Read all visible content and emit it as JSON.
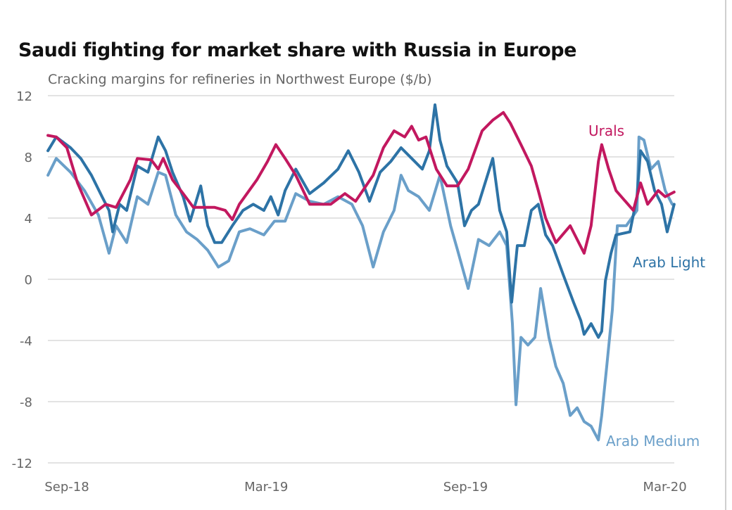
{
  "chart_data": {
    "type": "line",
    "title": "Saudi fighting for market share with Russia in Europe",
    "subtitle": "Cracking margins for refineries in Northwest Europe ($/b)",
    "xlabel": "",
    "ylabel": "$/b",
    "x_unit": "months since Sep-18",
    "xticks": [
      {
        "value": 0,
        "label": "Sep-18"
      },
      {
        "value": 6,
        "label": "Mar-19"
      },
      {
        "value": 12,
        "label": "Sep-19"
      },
      {
        "value": 18,
        "label": "Mar-20"
      }
    ],
    "xlim": [
      -0.57,
      18.3
    ],
    "ylim": [
      -12,
      12
    ],
    "yticks": [
      12,
      8,
      4,
      0,
      -4,
      -8,
      -12
    ],
    "grid": true,
    "legend": "direct labels at line ends",
    "series": [
      {
        "name": "Arab Medium",
        "color": "#6a9fc9",
        "points": [
          [
            -0.57,
            6.8
          ],
          [
            -0.32,
            7.9
          ],
          [
            0.11,
            7.0
          ],
          [
            0.53,
            5.8
          ],
          [
            0.95,
            4.2
          ],
          [
            1.27,
            1.7
          ],
          [
            1.48,
            3.5
          ],
          [
            1.8,
            2.4
          ],
          [
            2.12,
            5.4
          ],
          [
            2.44,
            4.9
          ],
          [
            2.75,
            7.0
          ],
          [
            2.97,
            6.8
          ],
          [
            3.28,
            4.2
          ],
          [
            3.6,
            3.1
          ],
          [
            3.92,
            2.6
          ],
          [
            4.24,
            1.9
          ],
          [
            4.56,
            0.8
          ],
          [
            4.87,
            1.2
          ],
          [
            5.19,
            3.1
          ],
          [
            5.51,
            3.3
          ],
          [
            5.93,
            2.9
          ],
          [
            6.25,
            3.8
          ],
          [
            6.57,
            3.8
          ],
          [
            6.89,
            5.6
          ],
          [
            7.31,
            5.1
          ],
          [
            7.73,
            4.9
          ],
          [
            8.16,
            5.4
          ],
          [
            8.58,
            4.9
          ],
          [
            8.9,
            3.5
          ],
          [
            9.22,
            0.8
          ],
          [
            9.53,
            3.1
          ],
          [
            9.85,
            4.5
          ],
          [
            10.06,
            6.8
          ],
          [
            10.28,
            5.8
          ],
          [
            10.59,
            5.4
          ],
          [
            10.91,
            4.5
          ],
          [
            11.23,
            6.8
          ],
          [
            11.55,
            3.5
          ],
          [
            11.76,
            1.9
          ],
          [
            12.08,
            -0.6
          ],
          [
            12.39,
            2.6
          ],
          [
            12.71,
            2.2
          ],
          [
            13.03,
            3.1
          ],
          [
            13.24,
            2.2
          ],
          [
            13.41,
            -2.9
          ],
          [
            13.52,
            -8.2
          ],
          [
            13.67,
            -3.8
          ],
          [
            13.88,
            -4.3
          ],
          [
            14.09,
            -3.8
          ],
          [
            14.26,
            -0.6
          ],
          [
            14.51,
            -3.8
          ],
          [
            14.72,
            -5.7
          ],
          [
            14.94,
            -6.8
          ],
          [
            15.15,
            -8.9
          ],
          [
            15.36,
            -8.4
          ],
          [
            15.57,
            -9.3
          ],
          [
            15.78,
            -9.6
          ],
          [
            16.0,
            -10.5
          ],
          [
            16.1,
            -8.9
          ],
          [
            16.25,
            -5.7
          ],
          [
            16.42,
            -2.0
          ],
          [
            16.57,
            3.5
          ],
          [
            16.84,
            3.5
          ],
          [
            17.16,
            4.5
          ],
          [
            17.22,
            9.3
          ],
          [
            17.37,
            9.1
          ],
          [
            17.58,
            7.2
          ],
          [
            17.8,
            7.7
          ],
          [
            18.01,
            5.8
          ],
          [
            18.22,
            4.9
          ]
        ]
      },
      {
        "name": "Arab Light",
        "color": "#2d73a6",
        "points": [
          [
            -0.57,
            8.4
          ],
          [
            -0.32,
            9.3
          ],
          [
            0.11,
            8.6
          ],
          [
            0.42,
            7.9
          ],
          [
            0.74,
            6.8
          ],
          [
            1.06,
            5.4
          ],
          [
            1.27,
            4.5
          ],
          [
            1.38,
            3.1
          ],
          [
            1.59,
            4.9
          ],
          [
            1.8,
            4.5
          ],
          [
            2.12,
            7.4
          ],
          [
            2.44,
            7.0
          ],
          [
            2.75,
            9.3
          ],
          [
            2.97,
            8.4
          ],
          [
            3.18,
            7.0
          ],
          [
            3.5,
            5.4
          ],
          [
            3.71,
            3.8
          ],
          [
            4.03,
            6.1
          ],
          [
            4.24,
            3.5
          ],
          [
            4.45,
            2.4
          ],
          [
            4.66,
            2.4
          ],
          [
            4.98,
            3.5
          ],
          [
            5.3,
            4.5
          ],
          [
            5.61,
            4.9
          ],
          [
            5.93,
            4.5
          ],
          [
            6.14,
            5.4
          ],
          [
            6.36,
            4.2
          ],
          [
            6.57,
            5.8
          ],
          [
            6.89,
            7.2
          ],
          [
            7.31,
            5.6
          ],
          [
            7.73,
            6.3
          ],
          [
            8.16,
            7.2
          ],
          [
            8.47,
            8.4
          ],
          [
            8.79,
            7.0
          ],
          [
            9.11,
            5.1
          ],
          [
            9.43,
            7.0
          ],
          [
            9.75,
            7.7
          ],
          [
            10.06,
            8.6
          ],
          [
            10.38,
            7.9
          ],
          [
            10.7,
            7.2
          ],
          [
            10.91,
            8.4
          ],
          [
            11.08,
            11.4
          ],
          [
            11.23,
            9.1
          ],
          [
            11.44,
            7.4
          ],
          [
            11.76,
            6.3
          ],
          [
            11.97,
            3.5
          ],
          [
            12.18,
            4.5
          ],
          [
            12.39,
            4.9
          ],
          [
            12.82,
            7.9
          ],
          [
            13.03,
            4.5
          ],
          [
            13.24,
            3.1
          ],
          [
            13.39,
            -1.5
          ],
          [
            13.56,
            2.2
          ],
          [
            13.77,
            2.2
          ],
          [
            13.98,
            4.5
          ],
          [
            14.19,
            4.9
          ],
          [
            14.41,
            2.9
          ],
          [
            14.62,
            2.2
          ],
          [
            14.94,
            0.3
          ],
          [
            15.25,
            -1.5
          ],
          [
            15.47,
            -2.7
          ],
          [
            15.57,
            -3.6
          ],
          [
            15.78,
            -2.9
          ],
          [
            16.0,
            -3.8
          ],
          [
            16.1,
            -3.4
          ],
          [
            16.21,
            -0.1
          ],
          [
            16.38,
            1.7
          ],
          [
            16.53,
            2.9
          ],
          [
            16.95,
            3.1
          ],
          [
            17.16,
            5.4
          ],
          [
            17.27,
            8.4
          ],
          [
            17.48,
            7.7
          ],
          [
            17.69,
            5.8
          ],
          [
            17.9,
            4.9
          ],
          [
            18.07,
            3.1
          ],
          [
            18.28,
            4.9
          ]
        ]
      },
      {
        "name": "Urals",
        "color": "#c2185f",
        "points": [
          [
            -0.57,
            9.4
          ],
          [
            -0.32,
            9.3
          ],
          [
            0,
            8.6
          ],
          [
            0.32,
            6.3
          ],
          [
            0.74,
            4.2
          ],
          [
            1.17,
            4.9
          ],
          [
            1.48,
            4.7
          ],
          [
            1.91,
            6.5
          ],
          [
            2.12,
            7.9
          ],
          [
            2.54,
            7.8
          ],
          [
            2.75,
            7.2
          ],
          [
            2.9,
            7.9
          ],
          [
            3.18,
            6.5
          ],
          [
            3.5,
            5.6
          ],
          [
            3.81,
            4.7
          ],
          [
            4.45,
            4.7
          ],
          [
            4.77,
            4.5
          ],
          [
            4.98,
            3.9
          ],
          [
            5.19,
            4.9
          ],
          [
            5.72,
            6.5
          ],
          [
            6.04,
            7.7
          ],
          [
            6.29,
            8.8
          ],
          [
            6.57,
            7.9
          ],
          [
            6.89,
            6.8
          ],
          [
            7.31,
            4.9
          ],
          [
            7.94,
            4.9
          ],
          [
            8.37,
            5.6
          ],
          [
            8.69,
            5.1
          ],
          [
            9.22,
            6.8
          ],
          [
            9.53,
            8.6
          ],
          [
            9.85,
            9.7
          ],
          [
            10.17,
            9.3
          ],
          [
            10.38,
            10.0
          ],
          [
            10.59,
            9.1
          ],
          [
            10.81,
            9.3
          ],
          [
            11.12,
            7.2
          ],
          [
            11.44,
            6.1
          ],
          [
            11.76,
            6.1
          ],
          [
            12.08,
            7.2
          ],
          [
            12.5,
            9.7
          ],
          [
            12.82,
            10.4
          ],
          [
            13.14,
            10.9
          ],
          [
            13.35,
            10.2
          ],
          [
            13.67,
            8.8
          ],
          [
            13.98,
            7.4
          ],
          [
            14.19,
            5.8
          ],
          [
            14.41,
            4.0
          ],
          [
            14.72,
            2.4
          ],
          [
            15.15,
            3.5
          ],
          [
            15.57,
            1.7
          ],
          [
            15.78,
            3.5
          ],
          [
            16.0,
            7.7
          ],
          [
            16.1,
            8.8
          ],
          [
            16.31,
            7.2
          ],
          [
            16.53,
            5.8
          ],
          [
            17.05,
            4.5
          ],
          [
            17.27,
            6.3
          ],
          [
            17.48,
            4.9
          ],
          [
            17.8,
            5.8
          ],
          [
            18.01,
            5.4
          ],
          [
            18.28,
            5.7
          ]
        ]
      }
    ]
  }
}
